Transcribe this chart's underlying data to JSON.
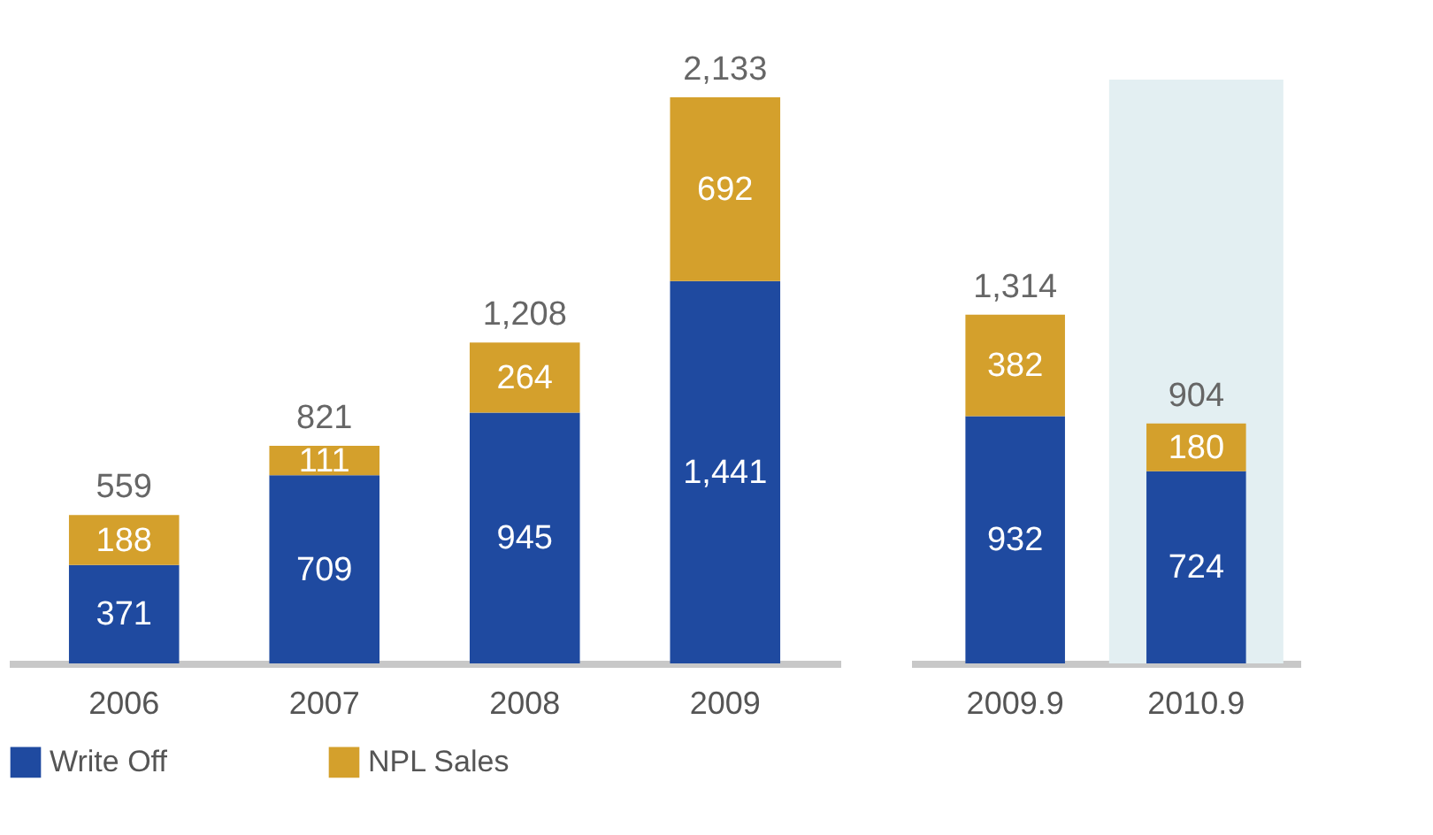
{
  "chart_data": [
    {
      "type": "bar",
      "stacked": true,
      "legend": "bottom",
      "categories": [
        "2006",
        "2007",
        "2008",
        "2009"
      ],
      "series": [
        {
          "name": "Write Off",
          "color": "#1f4aa0",
          "values": [
            371,
            709,
            945,
            1441
          ],
          "value_labels": [
            "371",
            "709",
            "945",
            "1,441"
          ]
        },
        {
          "name": "NPL Sales",
          "color": "#d4a02c",
          "values": [
            188,
            111,
            264,
            692
          ],
          "value_labels": [
            "188",
            "111",
            "264",
            "692"
          ]
        }
      ],
      "totals": [
        "559",
        "821",
        "1,208",
        "2,133"
      ]
    },
    {
      "type": "bar",
      "stacked": true,
      "legend": false,
      "categories": [
        "2009.9",
        "2010.9"
      ],
      "series": [
        {
          "name": "Write Off",
          "color": "#1f4aa0",
          "values": [
            932,
            724
          ],
          "value_labels": [
            "932",
            "724"
          ]
        },
        {
          "name": "NPL Sales",
          "color": "#d4a02c",
          "values": [
            382,
            180
          ],
          "value_labels": [
            "382",
            "180"
          ]
        }
      ],
      "totals": [
        "1,314",
        "904"
      ],
      "bands": [
        {
          "axis": "x",
          "from": "2010.9",
          "to": "2010.9",
          "color": "#e3eff2"
        }
      ]
    }
  ]
}
